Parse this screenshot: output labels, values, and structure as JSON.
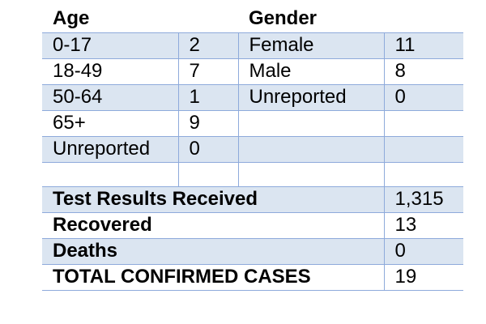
{
  "headers": {
    "age": "Age",
    "gender": "Gender"
  },
  "rows": [
    {
      "age_label": "0-17",
      "age_count": "2",
      "gender_label": "Female",
      "gender_count": "11"
    },
    {
      "age_label": "18-49",
      "age_count": "7",
      "gender_label": "Male",
      "gender_count": "8"
    },
    {
      "age_label": "50-64",
      "age_count": "1",
      "gender_label": "Unreported",
      "gender_count": "0"
    },
    {
      "age_label": "65+",
      "age_count": "9",
      "gender_label": "",
      "gender_count": ""
    },
    {
      "age_label": "Unreported",
      "age_count": "0",
      "gender_label": "",
      "gender_count": ""
    }
  ],
  "summary": [
    {
      "label": "Test Results Received",
      "value": "1,315"
    },
    {
      "label": "Recovered",
      "value": "13"
    },
    {
      "label": "Deaths",
      "value": "0"
    },
    {
      "label": "TOTAL CONFIRMED CASES",
      "value": "19"
    }
  ],
  "colors": {
    "shade": "#dbe5f1",
    "border": "#8eaadb"
  }
}
